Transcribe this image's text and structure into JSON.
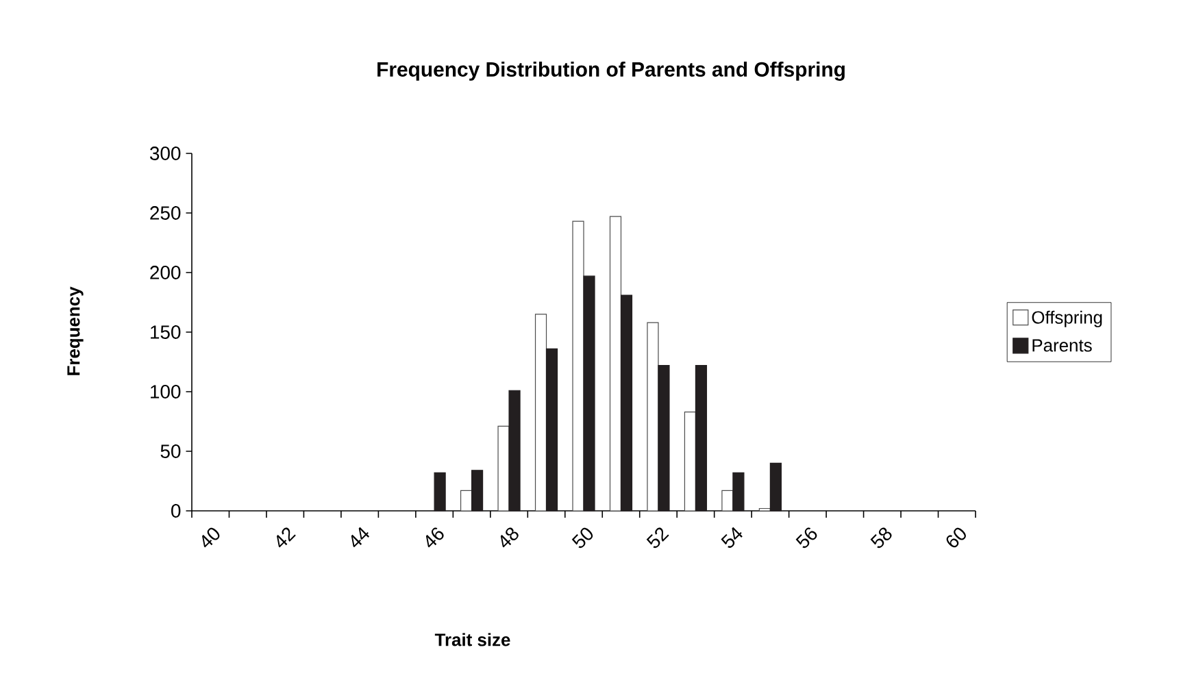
{
  "chart_data": {
    "type": "bar",
    "title": "Frequency Distribution of Parents and Offspring",
    "xlabel": "Trait size",
    "ylabel": "Frequency",
    "categories": [
      "40",
      null,
      "42",
      null,
      "44",
      null,
      "46",
      null,
      "48",
      null,
      "50",
      null,
      "52",
      null,
      "54",
      null,
      "56",
      null,
      "58",
      null,
      "60"
    ],
    "series": [
      {
        "name": "Offspring",
        "color": "#ffffff",
        "values": [
          null,
          null,
          null,
          null,
          null,
          null,
          null,
          17,
          71,
          165,
          243,
          247,
          158,
          83,
          17,
          2,
          null,
          null,
          null,
          null,
          null
        ]
      },
      {
        "name": "Parents",
        "color": "#231f20",
        "values": [
          null,
          null,
          null,
          null,
          null,
          null,
          32,
          34,
          101,
          136,
          197,
          181,
          122,
          122,
          32,
          40,
          null,
          null,
          null,
          null,
          null
        ]
      }
    ],
    "ylim": [
      0,
      300
    ],
    "yticks": [
      0,
      50,
      100,
      150,
      200,
      250,
      300
    ],
    "legend": "right"
  }
}
